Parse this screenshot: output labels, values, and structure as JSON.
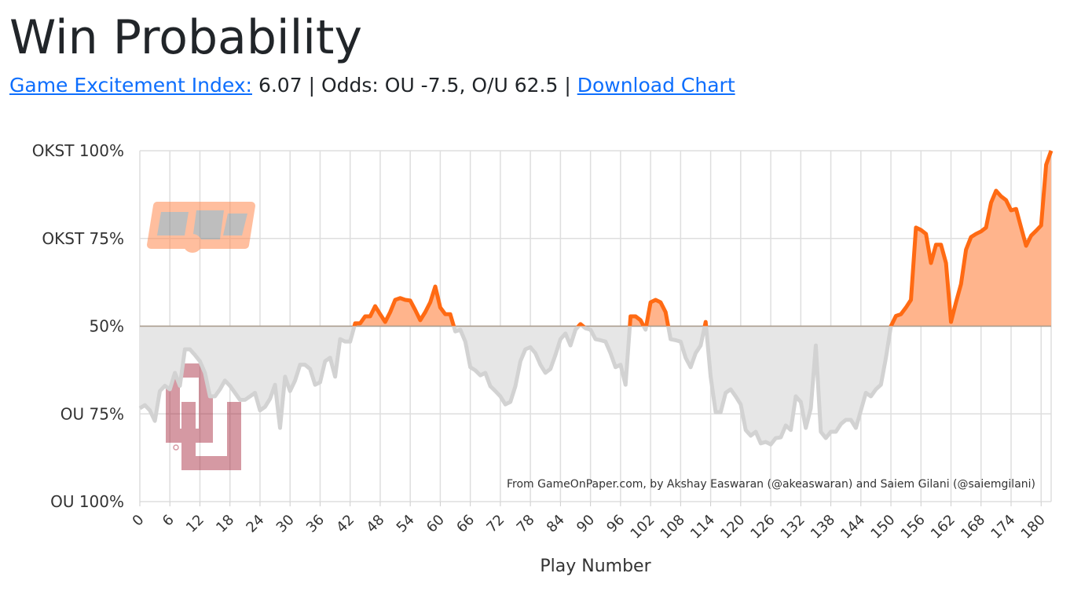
{
  "header": {
    "title": "Win Probability",
    "excitement_label": "Game Excitement Index:",
    "excitement_index": "6.07",
    "separator": "|",
    "odds": "Odds: OU -7.5, O/U 62.5",
    "download": "Download Chart"
  },
  "chart_data": {
    "type": "line",
    "x": [
      0,
      1,
      2,
      3,
      4,
      5,
      6,
      7,
      8,
      9,
      10,
      11,
      12,
      13,
      14,
      15,
      16,
      17,
      18,
      19,
      20,
      21,
      22,
      23,
      24,
      25,
      26,
      27,
      28,
      29,
      30,
      31,
      32,
      33,
      34,
      35,
      36,
      37,
      38,
      39,
      40,
      41,
      42,
      43,
      44,
      45,
      46,
      47,
      48,
      49,
      50,
      51,
      52,
      53,
      54,
      55,
      56,
      57,
      58,
      59,
      60,
      61,
      62,
      63,
      64,
      65,
      66,
      67,
      68,
      69,
      70,
      71,
      72,
      73,
      74,
      75,
      76,
      77,
      78,
      79,
      80,
      81,
      82,
      83,
      84,
      85,
      86,
      87,
      88,
      89,
      90,
      91,
      92,
      93,
      94,
      95,
      96,
      97,
      98,
      99,
      100,
      101,
      102,
      103,
      104,
      105,
      106,
      107,
      108,
      109,
      110,
      111,
      112,
      113,
      114,
      115,
      116,
      117,
      118,
      119,
      120,
      121,
      122,
      123,
      124,
      125,
      126,
      127,
      128,
      129,
      130,
      131,
      132,
      133,
      134,
      135,
      136,
      137,
      138,
      139,
      140,
      141,
      142,
      143,
      144,
      145,
      146,
      147,
      148,
      149,
      150,
      151,
      152,
      153,
      154,
      155,
      156,
      157,
      158,
      159,
      160,
      161,
      162,
      163,
      164,
      165,
      166,
      167,
      168,
      169,
      170,
      171,
      172,
      173,
      174,
      175,
      176,
      177,
      178,
      179,
      180,
      181,
      182
    ],
    "values": [
      26.6,
      27.5,
      26,
      23,
      31.5,
      33,
      32,
      36.7,
      33,
      43.4,
      43.4,
      41.8,
      40,
      36.7,
      30,
      30,
      32,
      34.5,
      33,
      31,
      29,
      29,
      30,
      31,
      26,
      27,
      29.3,
      33.3,
      21,
      35.6,
      31.5,
      34.5,
      39,
      39,
      37.8,
      33.3,
      34,
      40,
      41,
      35.6,
      46.3,
      45.6,
      45.6,
      50.8,
      50.8,
      52.8,
      52.8,
      55.7,
      53.4,
      51.2,
      54,
      57.5,
      58,
      57.5,
      57.3,
      54.6,
      51.7,
      54,
      56.8,
      61.3,
      55.3,
      53.4,
      53.4,
      48.5,
      49,
      45.6,
      38.3,
      37.4,
      36,
      36.7,
      32.9,
      31.5,
      30,
      27.7,
      28.4,
      32.9,
      40,
      43.4,
      44,
      42.3,
      39,
      36.7,
      37.8,
      41.8,
      46.3,
      47.9,
      44.5,
      49,
      50.6,
      49.4,
      49,
      46.3,
      46,
      45.6,
      42.3,
      38.3,
      39,
      33.3,
      52.8,
      52.8,
      51.7,
      49,
      56.8,
      57.5,
      56.8,
      54,
      46.3,
      46,
      45.6,
      41,
      38.3,
      42.3,
      44.5,
      51.2,
      35.6,
      25.5,
      25.5,
      31,
      32,
      30,
      27.7,
      20.4,
      18.8,
      19.9,
      16.6,
      17,
      16.3,
      18.1,
      18.3,
      21.7,
      20.4,
      30,
      28.4,
      21,
      26.6,
      44.5,
      19.9,
      18.1,
      19.9,
      19.9,
      22.1,
      23.3,
      23.3,
      21,
      26,
      31,
      30,
      32,
      33.3,
      41,
      50,
      52.9,
      53.4,
      55.3,
      57.5,
      78.1,
      77.4,
      76.3,
      68,
      73.2,
      73.2,
      68,
      51.2,
      56.8,
      62,
      71.8,
      75.4,
      76.3,
      77,
      78.1,
      85.2,
      88.6,
      87,
      85.9,
      83,
      83.4,
      78.1,
      72.9,
      75.8,
      77.2,
      78.7,
      96,
      100
    ],
    "line_color_above": "#ff6a13",
    "line_color_below": "#d2d2d2",
    "fill_above": "#ffb48c",
    "fill_below": "#e6e6e6",
    "xlim": [
      0,
      182
    ],
    "xticks": [
      0,
      6,
      12,
      18,
      24,
      30,
      36,
      42,
      48,
      54,
      60,
      66,
      72,
      78,
      84,
      90,
      96,
      102,
      108,
      114,
      120,
      126,
      132,
      138,
      144,
      150,
      156,
      162,
      168,
      174,
      180
    ],
    "ylim": [
      0,
      100
    ],
    "yticks": [
      {
        "value": 0,
        "label": "OU 100%"
      },
      {
        "value": 25,
        "label": "OU 75%"
      },
      {
        "value": 50,
        "label": "50%"
      },
      {
        "value": 75,
        "label": "OKST 75%"
      },
      {
        "value": 100,
        "label": "OKST 100%"
      }
    ],
    "grid": true,
    "xlabel": "Play Number",
    "credit": "From GameOnPaper.com, by Akshay Easwaran (@akeaswaran) and Saiem Gilani (@saiemgilani)"
  }
}
